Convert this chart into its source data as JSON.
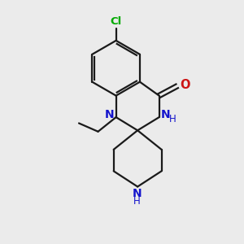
{
  "bg_color": "#ebebeb",
  "bond_color": "#1a1a1a",
  "bond_width": 1.6,
  "N_color": "#1414cc",
  "O_color": "#cc1414",
  "Cl_color": "#00aa00",
  "figsize": [
    3.0,
    3.0
  ],
  "dpi": 100,
  "xlim": [
    0,
    10
  ],
  "ylim": [
    0,
    10
  ]
}
